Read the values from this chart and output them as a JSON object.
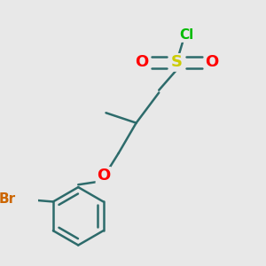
{
  "background_color": "#e8e8e8",
  "atom_colors": {
    "C": "#2d6b6b",
    "Cl": "#00bb00",
    "S": "#cccc00",
    "O": "#ff0000",
    "Br": "#cc6600"
  },
  "bond_color": "#2d6b6b",
  "bond_width": 1.8,
  "font_size": 13,
  "font_size_small": 11,
  "figsize": [
    3.0,
    3.0
  ],
  "dpi": 100
}
